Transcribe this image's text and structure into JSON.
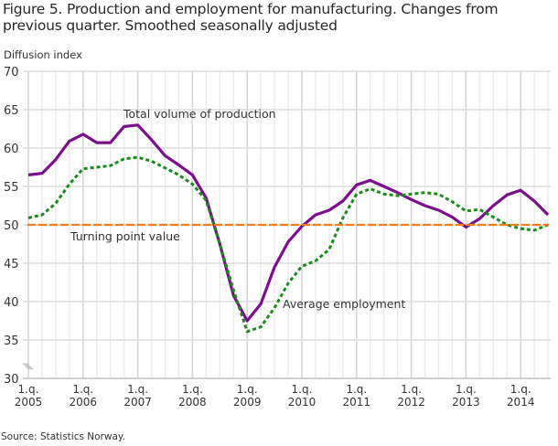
{
  "figure": {
    "title": "Figure 5. Production and employment for manufacturing. Changes from previous quarter. Smoothed seasonally adjusted",
    "y_unit_label": "Diffusion index",
    "source": "Source: Statistics Norway."
  },
  "chart_data": {
    "type": "line",
    "title": "Figure 5. Production and employment for manufacturing. Changes from previous quarter. Smoothed seasonally adjusted",
    "xlabel": "",
    "ylabel": "Diffusion index",
    "ylim": [
      30,
      70
    ],
    "yticks": [
      30,
      35,
      40,
      45,
      50,
      55,
      60,
      65,
      70
    ],
    "xticks": [
      {
        "line1": "1.q.",
        "line2": "2005",
        "index": 0
      },
      {
        "line1": "1.q.",
        "line2": "2006",
        "index": 4
      },
      {
        "line1": "1.q.",
        "line2": "2007",
        "index": 8
      },
      {
        "line1": "1.q.",
        "line2": "2008",
        "index": 12
      },
      {
        "line1": "1.q.",
        "line2": "2009",
        "index": 16
      },
      {
        "line1": "1.q.",
        "line2": "2010",
        "index": 20
      },
      {
        "line1": "1.q.",
        "line2": "2011",
        "index": 24
      },
      {
        "line1": "1.q.",
        "line2": "2012",
        "index": 28
      },
      {
        "line1": "1.q.",
        "line2": "2013",
        "index": 32
      },
      {
        "line1": "1.q.",
        "line2": "2014",
        "index": 36
      }
    ],
    "x": [
      "2005Q1",
      "2005Q2",
      "2005Q3",
      "2005Q4",
      "2006Q1",
      "2006Q2",
      "2006Q3",
      "2006Q4",
      "2007Q1",
      "2007Q2",
      "2007Q3",
      "2007Q4",
      "2008Q1",
      "2008Q2",
      "2008Q3",
      "2008Q4",
      "2009Q1",
      "2009Q2",
      "2009Q3",
      "2009Q4",
      "2010Q1",
      "2010Q2",
      "2010Q3",
      "2010Q4",
      "2011Q1",
      "2011Q2",
      "2011Q3",
      "2011Q4",
      "2012Q1",
      "2012Q2",
      "2012Q3",
      "2012Q4",
      "2013Q1",
      "2013Q2",
      "2013Q3",
      "2013Q4",
      "2014Q1",
      "2014Q2",
      "2014Q3"
    ],
    "grid": true,
    "axis_break": true,
    "series": [
      {
        "name": "Total volume of production",
        "color": "#7b0f8c",
        "style": "solid",
        "values": [
          56.5,
          56.7,
          58.5,
          60.9,
          61.8,
          60.7,
          60.7,
          62.8,
          63.0,
          61.1,
          59.0,
          57.8,
          56.5,
          53.5,
          47.5,
          40.8,
          37.5,
          39.7,
          44.5,
          47.8,
          49.8,
          51.3,
          51.9,
          53.1,
          55.2,
          55.8,
          55.0,
          54.2,
          53.3,
          52.5,
          51.9,
          51.0,
          49.7,
          50.8,
          52.5,
          53.9,
          54.5,
          53.1,
          51.3
        ]
      },
      {
        "name": "Average employment",
        "color": "#1a8a1a",
        "style": "dotted",
        "values": [
          50.9,
          51.3,
          52.8,
          55.3,
          57.3,
          57.5,
          57.7,
          58.6,
          58.8,
          58.3,
          57.4,
          56.5,
          55.3,
          53.2,
          47.5,
          41.5,
          36.1,
          36.7,
          39.2,
          42.4,
          44.6,
          45.3,
          46.8,
          50.9,
          54.0,
          54.7,
          54.0,
          53.8,
          54.0,
          54.2,
          54.0,
          53.0,
          51.8,
          52.0,
          51.0,
          50.0,
          49.5,
          49.3,
          50.0
        ]
      },
      {
        "name": "Turning point value",
        "color": "#f07d1e",
        "style": "dashed",
        "constant": 50
      }
    ],
    "annotations": [
      {
        "text": "Total volume of production",
        "series": "Total volume of production"
      },
      {
        "text": "Turning point value",
        "series": "Turning point value"
      },
      {
        "text": "Average employment",
        "series": "Average employment"
      }
    ]
  }
}
